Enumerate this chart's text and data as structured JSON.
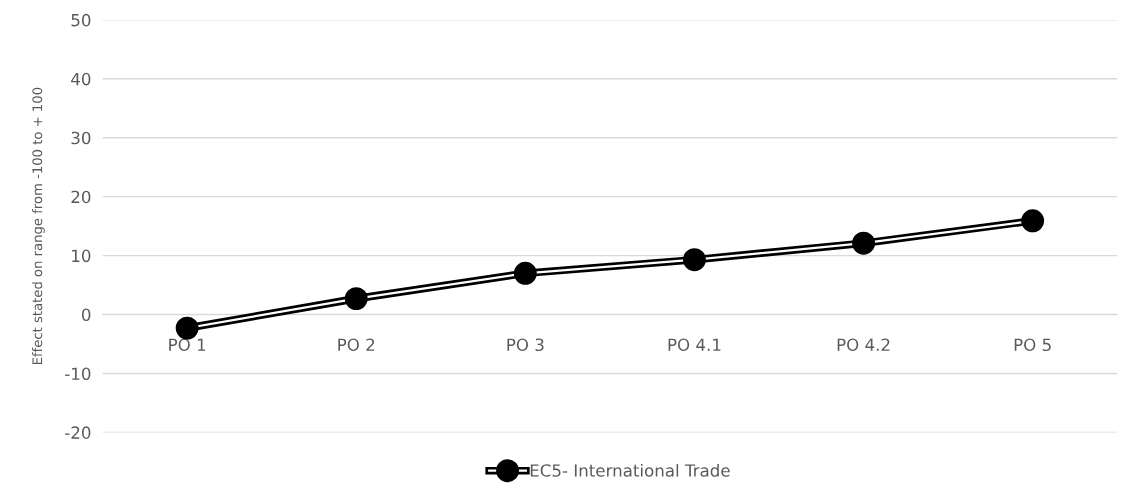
{
  "chart_data": {
    "type": "line",
    "ylabel": "Effect stated on range from -100 to + 100",
    "categories": [
      "PO 1",
      "PO 2",
      "PO 3",
      "PO 4.1",
      "PO 4.2",
      "PO 5"
    ],
    "series": [
      {
        "name": "EC5- International Trade",
        "color": "#000000",
        "values": [
          -2.3,
          2.7,
          7.0,
          9.3,
          12.1,
          15.9
        ]
      }
    ],
    "ylim": [
      -20,
      50
    ],
    "yticks": [
      -20,
      -10,
      0,
      10,
      20,
      30,
      40,
      50
    ],
    "grid": "y",
    "legend": "bottom",
    "marker": "circle",
    "line_style": "solid"
  }
}
